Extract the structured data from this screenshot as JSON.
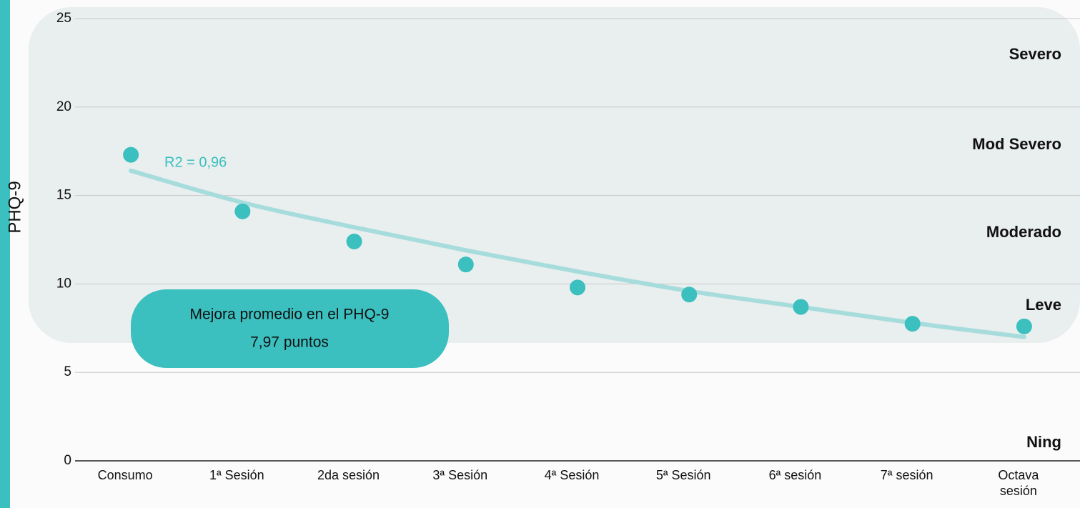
{
  "chart_data": {
    "type": "scatter",
    "y_label": "PHQ-9",
    "categories": [
      "Consumo",
      "1ª Sesión",
      "2da sesión",
      "3ª Sesión",
      "4ª Sesión",
      "5ª Sesión",
      "6ª sesión",
      "7ª sesión",
      "Octava sesión"
    ],
    "values": [
      17.3,
      14.1,
      12.4,
      11.1,
      9.8,
      9.4,
      8.7,
      7.75,
      7.6
    ],
    "color": "#3bbfbf",
    "trendline": {
      "values": [
        16.4,
        14.6,
        13.2,
        11.9,
        10.7,
        9.6,
        8.7,
        7.8,
        7.0
      ],
      "color": "#a6dcdc"
    },
    "annotation": "R2 = 0,96",
    "callout": [
      "Mejora promedio en el PHQ-9",
      "7,97 puntos"
    ],
    "zones": [
      "Severo",
      "Mod Severo",
      "Moderado",
      "Leve",
      "Ning"
    ],
    "ylim": [
      0,
      25
    ],
    "yticks": [
      0,
      5,
      10,
      15,
      20,
      25
    ],
    "grid": true
  }
}
